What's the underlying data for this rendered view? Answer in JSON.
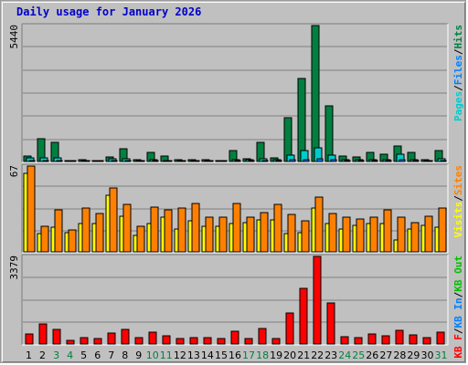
{
  "title": "Daily usage for January 2026",
  "colors": {
    "pages": "#00cccc",
    "files": "#0080ff",
    "hits": "#008040",
    "visits": "#ffff00",
    "sites": "#ff8000",
    "kbf": "#ff0000",
    "kbin": "#0080ff",
    "kbout": "#00c000",
    "weekday": "#000000",
    "weekend": "#008040"
  },
  "chart_data": [
    {
      "type": "bar",
      "panel": "hits-files-pages",
      "ymax_label": "5440",
      "ylim": [
        0,
        5440
      ],
      "grid": true,
      "legend_parts": [
        {
          "text": "Pages",
          "key": "pages"
        },
        {
          "text": "/",
          "key": null
        },
        {
          "text": "Files",
          "key": "files"
        },
        {
          "text": "/",
          "key": null
        },
        {
          "text": "Hits",
          "key": "hits"
        }
      ],
      "categories": [
        "1",
        "2",
        "3",
        "4",
        "5",
        "6",
        "7",
        "8",
        "9",
        "10",
        "11",
        "12",
        "13",
        "14",
        "15",
        "16",
        "17",
        "18",
        "19",
        "20",
        "21",
        "22",
        "23",
        "24",
        "25",
        "26",
        "27",
        "28",
        "29",
        "30",
        "31"
      ],
      "weekend_days": [
        "3",
        "4",
        "10",
        "11",
        "17",
        "18",
        "24",
        "25",
        "31"
      ],
      "series": [
        {
          "name": "Hits",
          "key": "hits",
          "values": [
            220,
            900,
            760,
            40,
            60,
            50,
            180,
            520,
            90,
            380,
            230,
            60,
            60,
            60,
            50,
            450,
            100,
            760,
            130,
            1750,
            3340,
            5440,
            2220,
            220,
            200,
            360,
            300,
            610,
            380,
            80,
            450
          ]
        },
        {
          "name": "Files",
          "key": "files",
          "values": [
            150,
            140,
            150,
            20,
            30,
            30,
            110,
            100,
            40,
            80,
            50,
            40,
            40,
            40,
            30,
            90,
            60,
            100,
            60,
            260,
            420,
            550,
            250,
            80,
            60,
            90,
            60,
            300,
            80,
            40,
            100
          ]
        },
        {
          "name": "Pages",
          "key": "pages",
          "values": [
            50,
            40,
            40,
            10,
            20,
            20,
            30,
            30,
            20,
            30,
            20,
            20,
            20,
            20,
            20,
            30,
            20,
            30,
            20,
            60,
            80,
            100,
            60,
            30,
            20,
            30,
            20,
            60,
            30,
            20,
            30
          ]
        }
      ]
    },
    {
      "type": "bar",
      "panel": "visits-sites",
      "ymax_label": "67",
      "ylim": [
        0,
        67
      ],
      "grid": true,
      "legend_parts": [
        {
          "text": "Visits",
          "key": "visits"
        },
        {
          "text": "/",
          "key": null
        },
        {
          "text": "Sites",
          "key": "sites"
        }
      ],
      "categories": [
        "1",
        "2",
        "3",
        "4",
        "5",
        "6",
        "7",
        "8",
        "9",
        "10",
        "11",
        "12",
        "13",
        "14",
        "15",
        "16",
        "17",
        "18",
        "19",
        "20",
        "21",
        "22",
        "23",
        "24",
        "25",
        "26",
        "27",
        "28",
        "29",
        "30",
        "31"
      ],
      "series": [
        {
          "name": "Visits",
          "key": "visits",
          "values": [
            61,
            14,
            19,
            15,
            22,
            22,
            44,
            28,
            13,
            22,
            27,
            18,
            24,
            20,
            20,
            22,
            23,
            25,
            25,
            14,
            15,
            34,
            22,
            18,
            21,
            22,
            22,
            9,
            18,
            21,
            19
          ]
        },
        {
          "name": "Sites",
          "key": "sites",
          "values": [
            67,
            20,
            33,
            17,
            34,
            30,
            50,
            37,
            20,
            35,
            33,
            34,
            38,
            27,
            27,
            38,
            27,
            31,
            37,
            29,
            24,
            43,
            30,
            27,
            26,
            27,
            33,
            27,
            23,
            28,
            34
          ]
        }
      ]
    },
    {
      "type": "bar",
      "panel": "kbf-kbin-kbout",
      "ymax_label": "3379",
      "ylim": [
        0,
        3379
      ],
      "grid": true,
      "legend_parts": [
        {
          "text": "KB F",
          "key": "kbf"
        },
        {
          "text": "/",
          "key": null
        },
        {
          "text": "KB In",
          "key": "kbin"
        },
        {
          "text": "/",
          "key": null
        },
        {
          "text": "KB Out",
          "key": "kbout"
        }
      ],
      "categories": [
        "1",
        "2",
        "3",
        "4",
        "5",
        "6",
        "7",
        "8",
        "9",
        "10",
        "11",
        "12",
        "13",
        "14",
        "15",
        "16",
        "17",
        "18",
        "19",
        "20",
        "21",
        "22",
        "23",
        "24",
        "25",
        "26",
        "27",
        "28",
        "29",
        "30",
        "31"
      ],
      "series": [
        {
          "name": "KB F",
          "key": "kbf",
          "values": [
            400,
            760,
            580,
            150,
            230,
            200,
            430,
            560,
            230,
            450,
            300,
            210,
            250,
            250,
            220,
            480,
            220,
            600,
            210,
            1200,
            2150,
            3379,
            1600,
            280,
            260,
            400,
            330,
            520,
            360,
            230,
            440
          ]
        }
      ]
    }
  ]
}
